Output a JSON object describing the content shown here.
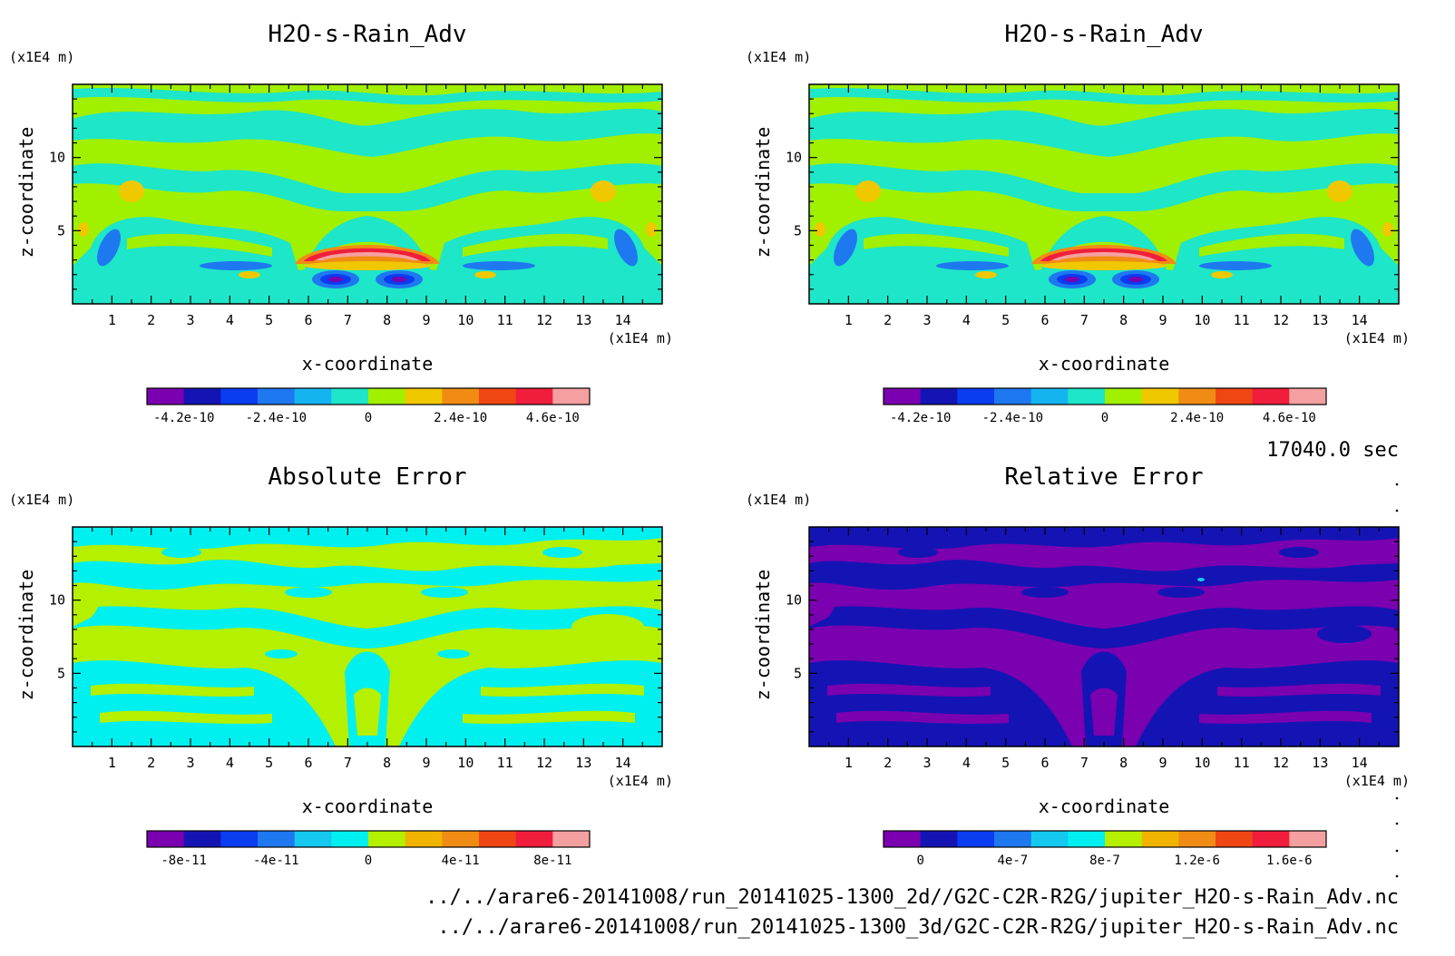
{
  "figure": {
    "time_label": "17040.0 sec",
    "files": [
      "../../arare6-20141008/run_20141025-1300_2d//G2C-C2R-R2G/jupiter_H2O-s-Rain_Adv.nc",
      "../../arare6-20141008/run_20141025-1300_3d/G2C-C2R-R2G/jupiter_H2O-s-Rain_Adv.nc"
    ]
  },
  "chart_data": [
    {
      "type": "heatmap",
      "title": "H2O-s-Rain_Adv",
      "xlabel": "x-coordinate",
      "ylabel": "z-coordinate",
      "x_unit": "(x1E4 m)",
      "y_unit": "(x1E4 m)",
      "xlim": [
        0,
        15
      ],
      "ylim": [
        0,
        15
      ],
      "x_ticks": [
        "1",
        "2",
        "3",
        "4",
        "5",
        "6",
        "7",
        "8",
        "9",
        "10",
        "11",
        "12",
        "13",
        "14"
      ],
      "y_ticks": [
        "5",
        "10"
      ],
      "colorbar": {
        "colors": [
          "#7a00b0",
          "#1414b4",
          "#0a3cf0",
          "#1e78f0",
          "#14b4f0",
          "#1ee6c8",
          "#a0f000",
          "#f0c800",
          "#f08c14",
          "#f04614",
          "#f01e3c",
          "#f5a0a0"
        ],
        "labels": [
          "-4.2e-10",
          "-2.4e-10",
          "0",
          "2.4e-10",
          "4.6e-10"
        ]
      }
    },
    {
      "type": "heatmap",
      "title": "H2O-s-Rain_Adv",
      "xlabel": "x-coordinate",
      "ylabel": "z-coordinate",
      "x_unit": "(x1E4 m)",
      "y_unit": "(x1E4 m)",
      "xlim": [
        0,
        15
      ],
      "ylim": [
        0,
        15
      ],
      "x_ticks": [
        "1",
        "2",
        "3",
        "4",
        "5",
        "6",
        "7",
        "8",
        "9",
        "10",
        "11",
        "12",
        "13",
        "14"
      ],
      "y_ticks": [
        "5",
        "10"
      ],
      "colorbar": {
        "colors": [
          "#7a00b0",
          "#1414b4",
          "#0a3cf0",
          "#1e78f0",
          "#14b4f0",
          "#1ee6c8",
          "#a0f000",
          "#f0c800",
          "#f08c14",
          "#f04614",
          "#f01e3c",
          "#f5a0a0"
        ],
        "labels": [
          "-4.2e-10",
          "-2.4e-10",
          "0",
          "2.4e-10",
          "4.6e-10"
        ]
      }
    },
    {
      "type": "heatmap",
      "title": "Absolute Error",
      "xlabel": "x-coordinate",
      "ylabel": "z-coordinate",
      "x_unit": "(x1E4 m)",
      "y_unit": "(x1E4 m)",
      "xlim": [
        0,
        15
      ],
      "ylim": [
        0,
        15
      ],
      "x_ticks": [
        "1",
        "2",
        "3",
        "4",
        "5",
        "6",
        "7",
        "8",
        "9",
        "10",
        "11",
        "12",
        "13",
        "14"
      ],
      "y_ticks": [
        "5",
        "10"
      ],
      "colorbar": {
        "colors": [
          "#7a00b0",
          "#1414b4",
          "#0a3cf0",
          "#1e78f0",
          "#14c8f0",
          "#00f0f0",
          "#b4f000",
          "#f0b400",
          "#f08c14",
          "#f04614",
          "#f01e3c",
          "#f5a0a0"
        ],
        "labels": [
          "-8e-11",
          "-4e-11",
          "0",
          "4e-11",
          "8e-11"
        ]
      }
    },
    {
      "type": "heatmap",
      "title": "Relative Error",
      "xlabel": "x-coordinate",
      "ylabel": "z-coordinate",
      "x_unit": "(x1E4 m)",
      "y_unit": "(x1E4 m)",
      "xlim": [
        0,
        15
      ],
      "ylim": [
        0,
        15
      ],
      "x_ticks": [
        "1",
        "2",
        "3",
        "4",
        "5",
        "6",
        "7",
        "8",
        "9",
        "10",
        "11",
        "12",
        "13",
        "14"
      ],
      "y_ticks": [
        "5",
        "10"
      ],
      "colorbar": {
        "colors": [
          "#7a00b0",
          "#1414b4",
          "#0a3cf0",
          "#1e78f0",
          "#14c8f0",
          "#00f0f0",
          "#b4f000",
          "#f0b400",
          "#f08c14",
          "#f04614",
          "#f01e3c",
          "#f5a0a0"
        ],
        "labels": [
          "0",
          "4e-7",
          "8e-7",
          "1.2e-6",
          "1.6e-6"
        ]
      }
    }
  ]
}
